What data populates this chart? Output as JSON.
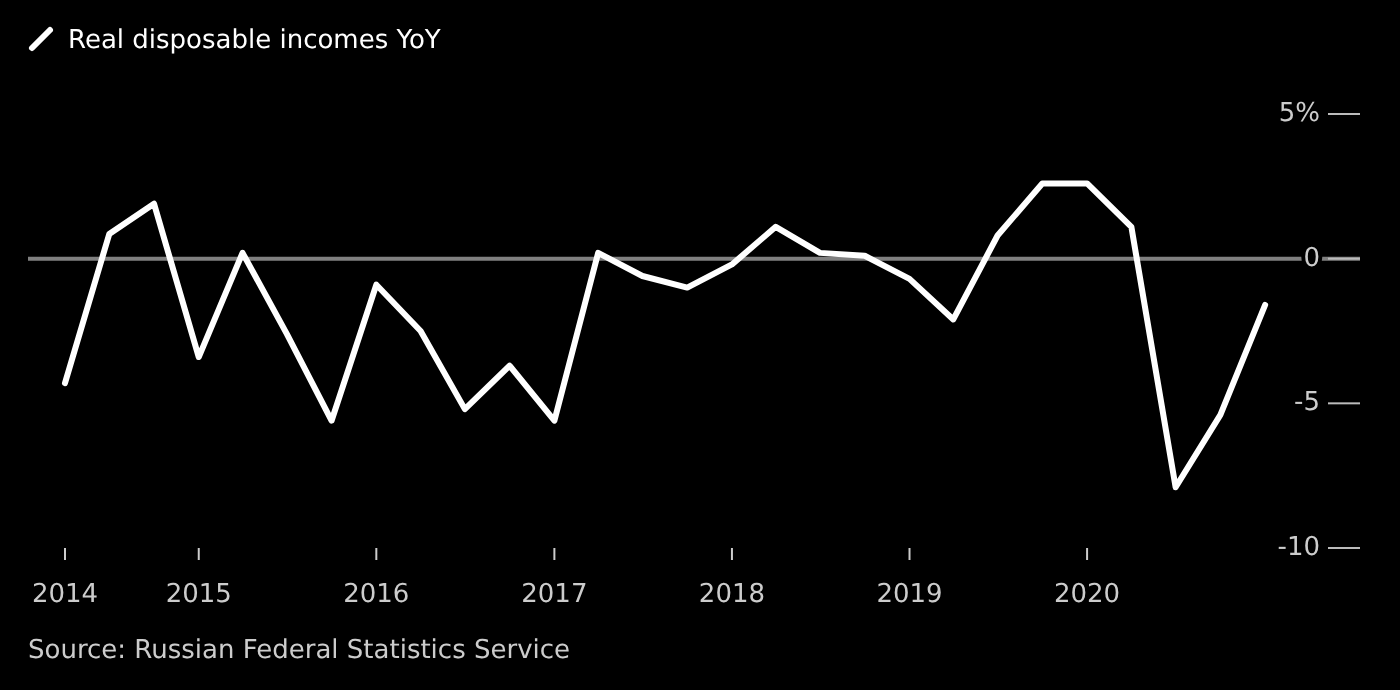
{
  "chart_data": {
    "type": "line",
    "x": [
      "2014-04-01",
      "2014-07-01",
      "2014-10-01",
      "2015-01-01",
      "2015-04-01",
      "2015-07-01",
      "2015-10-01",
      "2016-01-01",
      "2016-04-01",
      "2016-07-01",
      "2016-10-01",
      "2017-01-01",
      "2017-04-01",
      "2017-07-01",
      "2017-10-01",
      "2018-01-01",
      "2018-04-01",
      "2018-07-01",
      "2018-10-01",
      "2019-01-01",
      "2019-04-01",
      "2019-07-01",
      "2019-10-01",
      "2020-01-01",
      "2020-04-01",
      "2020-07-01",
      "2020-10-01",
      "2021-01-01"
    ],
    "series": [
      {
        "name": "Real disposable incomes YoY",
        "color": "#ffffff",
        "values": [
          -4.3,
          0.85,
          1.9,
          -3.4,
          0.2,
          -2.6,
          -5.6,
          -0.9,
          -2.5,
          -5.2,
          -3.7,
          -5.6,
          0.2,
          -0.6,
          -1.0,
          -0.2,
          1.1,
          0.2,
          0.1,
          -0.7,
          -2.1,
          0.8,
          2.6,
          2.6,
          1.1,
          -7.9,
          -5.4,
          -1.6
        ]
      }
    ],
    "xlim": [
      "2014-01-15",
      "2021-07-15"
    ],
    "xticks": [
      {
        "value": "2014-04-01",
        "label": "2014"
      },
      {
        "value": "2015-01-01",
        "label": "2015"
      },
      {
        "value": "2016-01-01",
        "label": "2016"
      },
      {
        "value": "2017-01-01",
        "label": "2017"
      },
      {
        "value": "2018-01-01",
        "label": "2018"
      },
      {
        "value": "2019-01-01",
        "label": "2019"
      },
      {
        "value": "2020-01-01",
        "label": "2020"
      }
    ],
    "ylim": [
      -10,
      5
    ],
    "yticks": [
      {
        "value": 5,
        "label": "5%"
      },
      0,
      -5,
      -10
    ],
    "ref_lines": [
      {
        "axis": "y",
        "value": 0,
        "color": "#808080"
      }
    ],
    "legend": "top left",
    "line_style": "solid",
    "annotations": [
      "Source: Russian Federal Statistics Service"
    ]
  }
}
